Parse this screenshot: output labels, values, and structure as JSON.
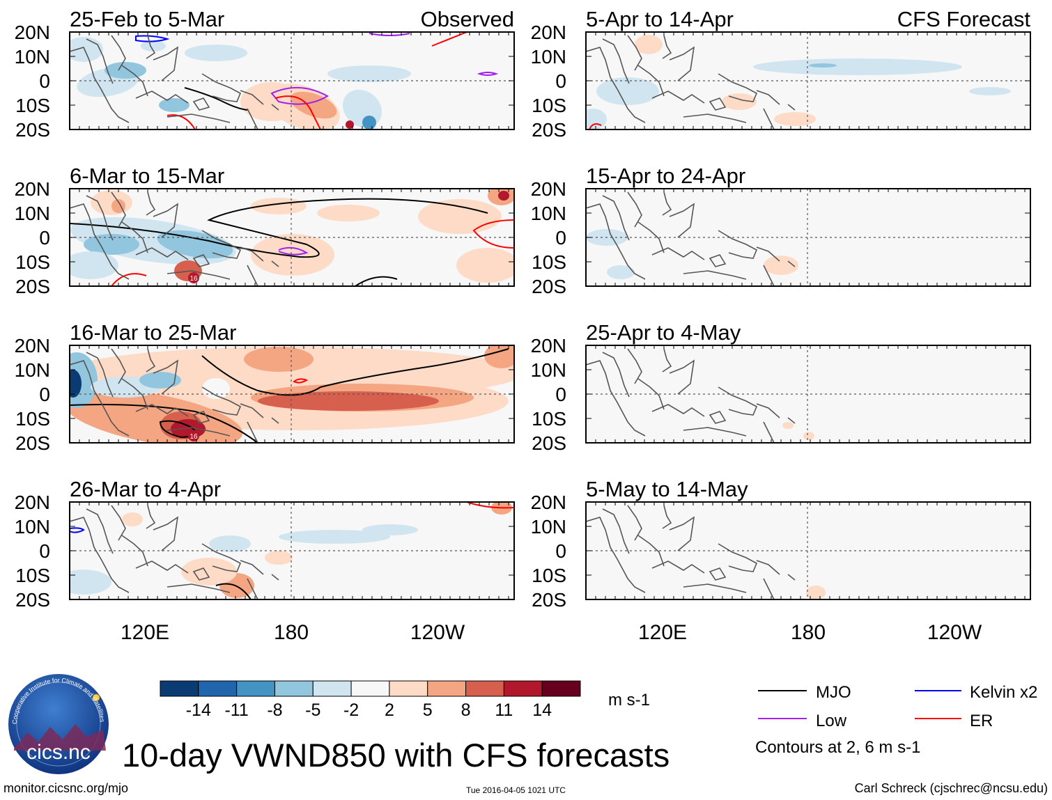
{
  "title": "10-day VWND850 with CFS forecasts",
  "labels": {
    "observed": "Observed",
    "forecast": "CFS Forecast",
    "units": "m s-1",
    "contours_note": "Contours at 2, 6 m s-1"
  },
  "footer": {
    "site": "monitor.cicsnc.org/mjo",
    "timestamp": "Tue 2016-04-05 1021 UTC",
    "author": "Carl Schreck (cjschrec@ncsu.edu)"
  },
  "logo": {
    "text": "cics.nc",
    "ring_text": "Cooperative Institute for Climate and Satellites"
  },
  "colors": {
    "neg14": "#0a3b73",
    "neg11": "#2166ac",
    "neg8": "#4393c3",
    "neg5": "#92c5de",
    "neg2": "#d1e5f0",
    "zero": "#f7f7f7",
    "pos2": "#fddbc7",
    "pos5": "#f4a582",
    "pos8": "#d6604d",
    "pos11": "#b2182b",
    "pos14": "#67001f",
    "mjo": "#000000",
    "low": "#a020f0",
    "kelvin": "#0000ff",
    "er": "#ff0000",
    "coast": "#555555"
  },
  "chart_data": {
    "type": "heatmap",
    "variable": "VWND850",
    "title": "10-day VWND850 with CFS forecasts",
    "units": "m s-1",
    "colorbar": {
      "tick_labels": [
        "-14",
        "-11",
        "-8",
        "-5",
        "-2",
        "2",
        "5",
        "8",
        "11",
        "14"
      ],
      "levels": [
        -14,
        -11,
        -8,
        -5,
        -2,
        2,
        5,
        8,
        11,
        14
      ]
    },
    "lat_ticks": [
      "20N",
      "10N",
      "0",
      "10S",
      "20S"
    ],
    "lon_ticks": [
      "120E",
      "180",
      "120W"
    ],
    "lat_range": [
      -20,
      20
    ],
    "lon_range": [
      90,
      270
    ],
    "legend": [
      {
        "label": "MJO",
        "color": "#000000"
      },
      {
        "label": "Low",
        "color": "#a020f0"
      },
      {
        "label": "Kelvin x2",
        "color": "#0000ff"
      },
      {
        "label": "ER",
        "color": "#ff0000"
      }
    ],
    "observed": [
      {
        "period": "25-Feb to 5-Mar"
      },
      {
        "period": "6-Mar to 15-Mar"
      },
      {
        "period": "16-Mar to 25-Mar"
      },
      {
        "period": "26-Mar to 4-Apr"
      }
    ],
    "forecast": [
      {
        "period": "5-Apr to 14-Apr"
      },
      {
        "period": "15-Apr to 24-Apr"
      },
      {
        "period": "25-Apr to 4-May"
      },
      {
        "period": "5-May to 14-May"
      }
    ],
    "storm_markers": [
      "16",
      "16"
    ]
  }
}
